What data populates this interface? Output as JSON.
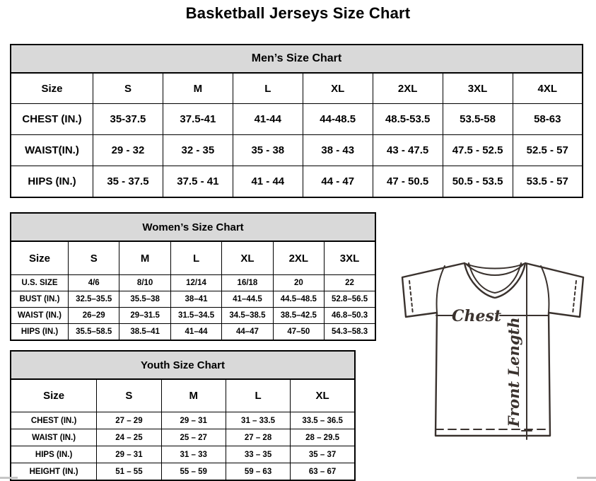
{
  "page": {
    "title": "Basketball Jerseys Size Chart"
  },
  "colors": {
    "table_header_bg": "#d9d9d9",
    "table_border": "#000000",
    "diagram_line": "#3a322e",
    "background": "#ffffff"
  },
  "tables": [
    {
      "id": "men",
      "title": "Men’s Size Chart",
      "columns": [
        "Size",
        "S",
        "M",
        "L",
        "XL",
        "2XL",
        "3XL",
        "4XL"
      ],
      "rows": [
        {
          "label": "CHEST (IN.)",
          "values": [
            "35-37.5",
            "37.5-41",
            "41-44",
            "44-48.5",
            "48.5-53.5",
            "53.5-58",
            "58-63"
          ]
        },
        {
          "label": "WAIST(IN.)",
          "values": [
            "29 - 32",
            "32 - 35",
            "35 - 38",
            "38 - 43",
            "43 - 47.5",
            "47.5 - 52.5",
            "52.5 - 57"
          ]
        },
        {
          "label": "HIPS (IN.)",
          "values": [
            "35 - 37.5",
            "37.5 - 41",
            "41 - 44",
            "44 - 47",
            "47 - 50.5",
            "50.5 - 53.5",
            "53.5 - 57"
          ]
        }
      ]
    },
    {
      "id": "women",
      "title": "Women’s Size Chart",
      "columns": [
        "Size",
        "S",
        "M",
        "L",
        "XL",
        "2XL",
        "3XL"
      ],
      "rows": [
        {
          "label": "U.S. SIZE",
          "values": [
            "4/6",
            "8/10",
            "12/14",
            "16/18",
            "20",
            "22"
          ]
        },
        {
          "label": "BUST (IN.)",
          "values": [
            "32.5–35.5",
            "35.5–38",
            "38–41",
            "41–44.5",
            "44.5–48.5",
            "52.8–56.5"
          ]
        },
        {
          "label": "WAIST (IN.)",
          "values": [
            "26–29",
            "29–31.5",
            "31.5–34.5",
            "34.5–38.5",
            "38.5–42.5",
            "46.8–50.3"
          ]
        },
        {
          "label": "HIPS (IN.)",
          "values": [
            "35.5–58.5",
            "38.5–41",
            "41–44",
            "44–47",
            "47–50",
            "54.3–58.3"
          ]
        }
      ]
    },
    {
      "id": "youth",
      "title": "Youth Size Chart",
      "columns": [
        "Size",
        "S",
        "M",
        "L",
        "XL"
      ],
      "rows": [
        {
          "label": "CHEST (IN.)",
          "values": [
            "27 – 29",
            "29 – 31",
            "31 – 33.5",
            "33.5 – 36.5"
          ]
        },
        {
          "label": "WAIST (IN.)",
          "values": [
            "24 – 25",
            "25 – 27",
            "27 – 28",
            "28 – 29.5"
          ]
        },
        {
          "label": "HIPS (IN.)",
          "values": [
            "29 – 31",
            "31 – 33",
            "33 – 35",
            "35 – 37"
          ]
        },
        {
          "label": "HEIGHT (IN.)",
          "values": [
            "51 – 55",
            "55 – 59",
            "59 – 63",
            "63 – 67"
          ]
        }
      ]
    }
  ],
  "diagram": {
    "chest_label": "Chest",
    "front_length_label": "Front Length"
  }
}
